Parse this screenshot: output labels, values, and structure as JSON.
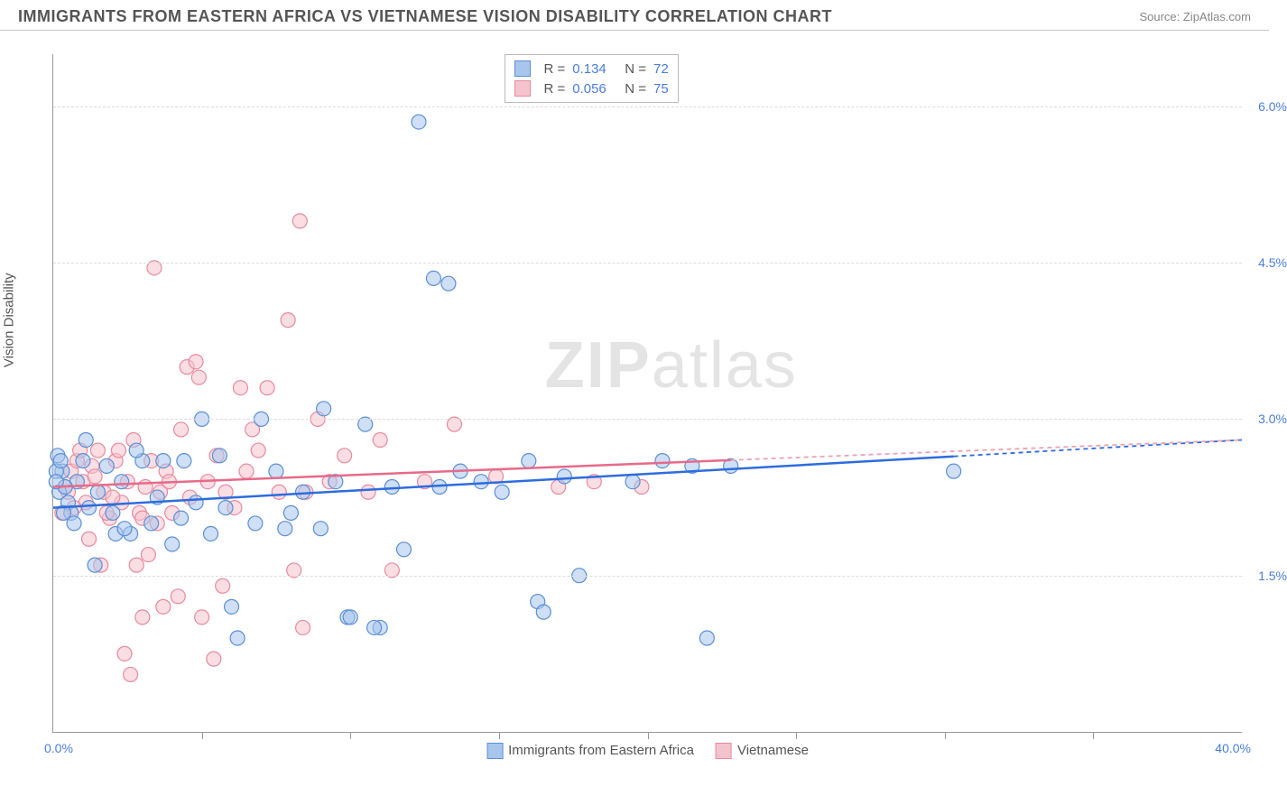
{
  "header": {
    "title": "IMMIGRANTS FROM EASTERN AFRICA VS VIETNAMESE VISION DISABILITY CORRELATION CHART",
    "source_prefix": "Source: ",
    "source": "ZipAtlas.com"
  },
  "chart": {
    "type": "scatter",
    "ylabel": "Vision Disability",
    "xlim": [
      0.0,
      40.0
    ],
    "ylim": [
      0.0,
      6.5
    ],
    "x_ticks_minor_count": 7,
    "y_ticks": [
      1.5,
      3.0,
      4.5,
      6.0
    ],
    "y_tick_labels": [
      "1.5%",
      "3.0%",
      "4.5%",
      "6.0%"
    ],
    "x_min_label": "0.0%",
    "x_max_label": "40.0%",
    "background_color": "#ffffff",
    "grid_color": "#dddddd",
    "axis_color": "#999999",
    "tick_label_color": "#4a7dd8",
    "marker_radius": 8,
    "marker_opacity": 0.55,
    "marker_stroke_width": 1.2,
    "watermark_text_bold": "ZIP",
    "watermark_text_rest": "atlas",
    "series": [
      {
        "name": "Immigrants from Eastern Africa",
        "color_fill": "#a8c5ec",
        "color_stroke": "#5b8fd6",
        "trend_color": "#2d6cdf",
        "trend_dash_color": "#2d6cdf",
        "R": "0.134",
        "N": "72",
        "trend": {
          "x1": 0.0,
          "y1": 2.15,
          "x2": 40.0,
          "y2": 2.8,
          "x_solid_max": 30.3
        },
        "points": [
          [
            0.2,
            2.3
          ],
          [
            0.5,
            2.2
          ],
          [
            0.8,
            2.4
          ],
          [
            0.3,
            2.5
          ],
          [
            0.6,
            2.1
          ],
          [
            1.0,
            2.6
          ],
          [
            0.4,
            2.35
          ],
          [
            0.7,
            2.0
          ],
          [
            1.2,
            2.15
          ],
          [
            1.5,
            2.3
          ],
          [
            1.8,
            2.55
          ],
          [
            2.0,
            2.1
          ],
          [
            2.3,
            2.4
          ],
          [
            2.6,
            1.9
          ],
          [
            3.3,
            2.0
          ],
          [
            1.1,
            2.8
          ],
          [
            3.0,
            2.6
          ],
          [
            3.5,
            2.25
          ],
          [
            4.4,
            2.6
          ],
          [
            4.8,
            2.2
          ],
          [
            5.3,
            1.9
          ],
          [
            5.0,
            3.0
          ],
          [
            5.8,
            2.15
          ],
          [
            6.2,
            0.9
          ],
          [
            6.8,
            2.0
          ],
          [
            7.5,
            2.5
          ],
          [
            8.4,
            2.3
          ],
          [
            9.0,
            1.95
          ],
          [
            9.5,
            2.4
          ],
          [
            9.9,
            1.1
          ],
          [
            10.5,
            2.95
          ],
          [
            11.0,
            1.0
          ],
          [
            11.4,
            2.35
          ],
          [
            11.8,
            1.75
          ],
          [
            12.3,
            5.85
          ],
          [
            12.8,
            4.35
          ],
          [
            13.0,
            2.35
          ],
          [
            13.3,
            4.3
          ],
          [
            13.7,
            2.5
          ],
          [
            9.1,
            3.1
          ],
          [
            14.4,
            2.4
          ],
          [
            15.1,
            2.3
          ],
          [
            16.0,
            2.6
          ],
          [
            16.3,
            1.25
          ],
          [
            16.5,
            1.15
          ],
          [
            17.7,
            1.5
          ],
          [
            17.2,
            2.45
          ],
          [
            19.5,
            2.4
          ],
          [
            20.5,
            2.6
          ],
          [
            21.5,
            2.55
          ],
          [
            22.8,
            2.55
          ],
          [
            22.0,
            0.9
          ],
          [
            30.3,
            2.5
          ],
          [
            4.0,
            1.8
          ],
          [
            4.3,
            2.05
          ],
          [
            2.8,
            2.7
          ],
          [
            6.0,
            1.2
          ],
          [
            7.0,
            3.0
          ],
          [
            7.8,
            1.95
          ],
          [
            8.0,
            2.1
          ],
          [
            3.7,
            2.6
          ],
          [
            1.4,
            1.6
          ],
          [
            2.1,
            1.9
          ],
          [
            2.4,
            1.95
          ],
          [
            5.6,
            2.65
          ],
          [
            0.1,
            2.5
          ],
          [
            0.15,
            2.65
          ],
          [
            0.35,
            2.1
          ],
          [
            0.25,
            2.6
          ],
          [
            10.0,
            1.1
          ],
          [
            10.8,
            1.0
          ],
          [
            0.1,
            2.4
          ]
        ]
      },
      {
        "name": "Vietnamese",
        "color_fill": "#f5c3cd",
        "color_stroke": "#e88a9e",
        "trend_color": "#e76a8a",
        "trend_dash_color": "#e9a3b4",
        "R": "0.056",
        "N": "75",
        "trend": {
          "x1": 0.0,
          "y1": 2.35,
          "x2": 40.0,
          "y2": 2.8,
          "x_solid_max": 22.8
        },
        "points": [
          [
            0.3,
            2.1
          ],
          [
            0.5,
            2.3
          ],
          [
            0.6,
            2.5
          ],
          [
            0.8,
            2.6
          ],
          [
            1.0,
            2.4
          ],
          [
            1.1,
            2.2
          ],
          [
            1.3,
            2.55
          ],
          [
            1.5,
            2.7
          ],
          [
            1.7,
            2.3
          ],
          [
            1.9,
            2.05
          ],
          [
            2.1,
            2.6
          ],
          [
            2.3,
            2.2
          ],
          [
            2.5,
            2.4
          ],
          [
            2.7,
            2.8
          ],
          [
            2.9,
            2.1
          ],
          [
            3.1,
            2.35
          ],
          [
            3.4,
            4.45
          ],
          [
            3.3,
            2.6
          ],
          [
            3.6,
            2.3
          ],
          [
            3.8,
            2.5
          ],
          [
            4.0,
            2.1
          ],
          [
            4.3,
            2.9
          ],
          [
            4.6,
            2.25
          ],
          [
            2.6,
            0.55
          ],
          [
            4.9,
            3.4
          ],
          [
            5.2,
            2.4
          ],
          [
            5.5,
            2.65
          ],
          [
            5.8,
            2.3
          ],
          [
            6.1,
            2.15
          ],
          [
            6.5,
            2.5
          ],
          [
            6.9,
            2.7
          ],
          [
            7.2,
            3.3
          ],
          [
            7.6,
            2.3
          ],
          [
            7.9,
            3.95
          ],
          [
            8.1,
            1.55
          ],
          [
            8.3,
            4.9
          ],
          [
            8.4,
            1.0
          ],
          [
            8.5,
            2.3
          ],
          [
            8.9,
            3.0
          ],
          [
            9.3,
            2.4
          ],
          [
            9.8,
            2.65
          ],
          [
            5.0,
            1.1
          ],
          [
            10.6,
            2.3
          ],
          [
            11.0,
            2.8
          ],
          [
            11.4,
            1.55
          ],
          [
            12.5,
            2.4
          ],
          [
            13.5,
            2.95
          ],
          [
            14.9,
            2.45
          ],
          [
            17.0,
            2.35
          ],
          [
            18.2,
            2.4
          ],
          [
            19.8,
            2.35
          ],
          [
            0.4,
            2.35
          ],
          [
            0.7,
            2.15
          ],
          [
            0.9,
            2.7
          ],
          [
            1.2,
            1.85
          ],
          [
            1.4,
            2.45
          ],
          [
            1.6,
            1.6
          ],
          [
            1.8,
            2.1
          ],
          [
            2.0,
            2.25
          ],
          [
            2.2,
            2.7
          ],
          [
            2.4,
            0.75
          ],
          [
            2.8,
            1.6
          ],
          [
            3.0,
            2.05
          ],
          [
            3.2,
            1.7
          ],
          [
            3.5,
            2.0
          ],
          [
            3.7,
            1.2
          ],
          [
            3.9,
            2.4
          ],
          [
            4.2,
            1.3
          ],
          [
            4.5,
            3.5
          ],
          [
            4.8,
            3.55
          ],
          [
            5.4,
            0.7
          ],
          [
            5.7,
            1.4
          ],
          [
            6.3,
            3.3
          ],
          [
            6.7,
            2.9
          ],
          [
            3.0,
            1.1
          ]
        ]
      }
    ],
    "stats_labels": {
      "R": "R  =",
      "N": "N  ="
    },
    "axis_legend": [
      {
        "label": "Immigrants from Eastern Africa",
        "fill": "#a8c5ec",
        "stroke": "#5b8fd6"
      },
      {
        "label": "Vietnamese",
        "fill": "#f5c3cd",
        "stroke": "#e88a9e"
      }
    ]
  }
}
